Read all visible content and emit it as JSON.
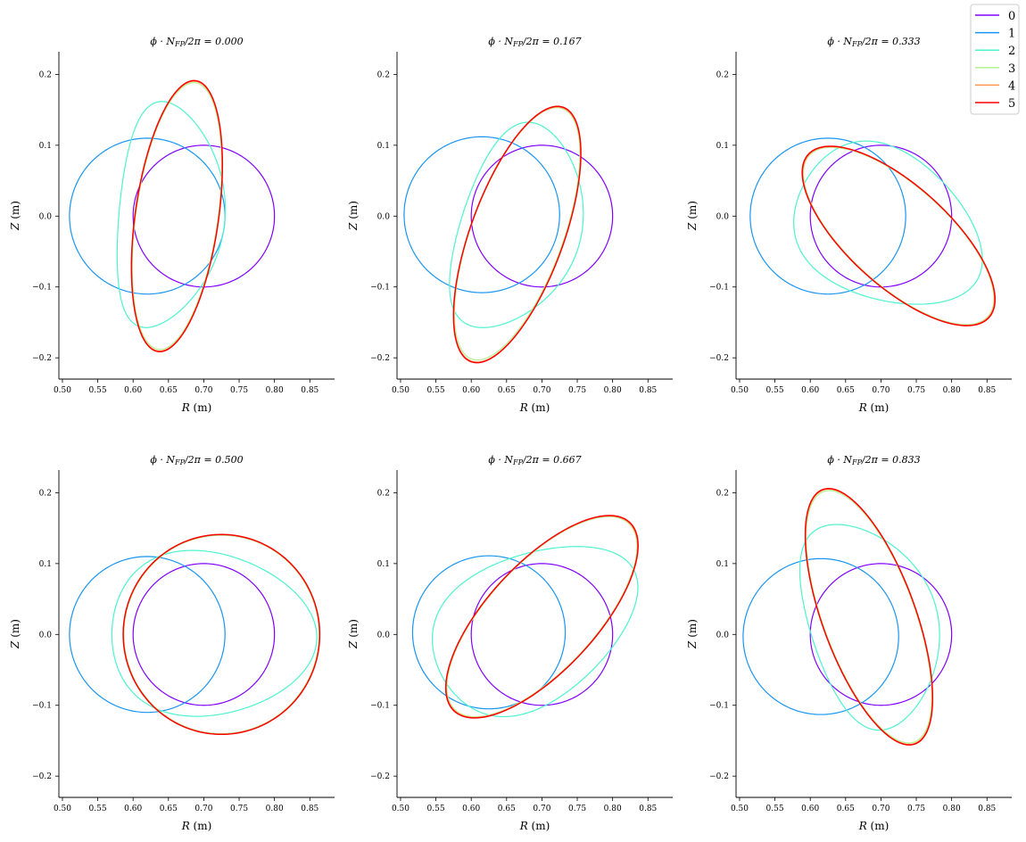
{
  "chart_data": {
    "type": "line",
    "title_prefix": "ϕ · N",
    "title_sub": "FP",
    "title_suffix": "/2π = ",
    "xlabel_var": "R",
    "xlabel_unit": " (m)",
    "ylabel_var": "Z",
    "ylabel_unit": " (m)",
    "xlim": [
      0.495,
      0.885
    ],
    "ylim": [
      -0.23,
      0.232
    ],
    "xticks": [
      0.5,
      0.55,
      0.6,
      0.65,
      0.7,
      0.75,
      0.8,
      0.85
    ],
    "xtick_labels": [
      "0.50",
      "0.55",
      "0.60",
      "0.65",
      "0.70",
      "0.75",
      "0.80",
      "0.85"
    ],
    "yticks": [
      -0.2,
      -0.1,
      0.0,
      0.1,
      0.2
    ],
    "ytick_labels": [
      "−0.2",
      "−0.1",
      "0.0",
      "0.1",
      "0.2"
    ],
    "legend_position": "top-right",
    "series": [
      {
        "name": "0",
        "color": "#8000ff"
      },
      {
        "name": "1",
        "color": "#1996f3"
      },
      {
        "name": "2",
        "color": "#4df3ce"
      },
      {
        "name": "3",
        "color": "#b2f396"
      },
      {
        "name": "4",
        "color": "#ff964f"
      },
      {
        "name": "5",
        "color": "#ff0000"
      }
    ],
    "panels": [
      {
        "phase": "0.000",
        "curves": [
          {
            "series": "0",
            "center": [
              0.7,
              0.0
            ],
            "semi_axes": [
              0.1,
              0.1
            ],
            "angle_deg": 0
          },
          {
            "series": "1",
            "center": [
              0.62,
              0.0
            ],
            "semi_axes": [
              0.11,
              0.11
            ],
            "angle_deg": 0
          },
          {
            "series": "2",
            "center": [
              0.655,
              0.0
            ],
            "semi_axes": [
              0.075,
              0.16
            ],
            "angle_deg": -5,
            "triangularity": 0.35
          },
          {
            "series": "3",
            "center": [
              0.662,
              0.0
            ],
            "semi_axes": [
              0.058,
              0.19
            ],
            "angle_deg": -8
          },
          {
            "series": "4",
            "center": [
              0.662,
              0.0
            ],
            "semi_axes": [
              0.059,
              0.192
            ],
            "angle_deg": -8
          },
          {
            "series": "5",
            "center": [
              0.662,
              0.0
            ],
            "semi_axes": [
              0.059,
              0.193
            ],
            "angle_deg": -8
          }
        ]
      },
      {
        "phase": "0.167",
        "curves": [
          {
            "series": "0",
            "center": [
              0.7,
              0.0
            ],
            "semi_axes": [
              0.1,
              0.1
            ],
            "angle_deg": 0
          },
          {
            "series": "1",
            "center": [
              0.615,
              0.002
            ],
            "semi_axes": [
              0.11,
              0.11
            ],
            "angle_deg": 0
          },
          {
            "series": "2",
            "center": [
              0.67,
              -0.02
            ],
            "semi_axes": [
              0.085,
              0.15
            ],
            "angle_deg": -18,
            "triangularity": 0.3
          },
          {
            "series": "3",
            "center": [
              0.665,
              -0.025
            ],
            "semi_axes": [
              0.065,
              0.188
            ],
            "angle_deg": -20
          },
          {
            "series": "4",
            "center": [
              0.665,
              -0.026
            ],
            "semi_axes": [
              0.066,
              0.19
            ],
            "angle_deg": -20
          },
          {
            "series": "5",
            "center": [
              0.665,
              -0.026
            ],
            "semi_axes": [
              0.066,
              0.191
            ],
            "angle_deg": -20
          }
        ]
      },
      {
        "phase": "0.333",
        "curves": [
          {
            "series": "0",
            "center": [
              0.7,
              0.0
            ],
            "semi_axes": [
              0.1,
              0.1
            ],
            "angle_deg": 0
          },
          {
            "series": "1",
            "center": [
              0.625,
              0.0
            ],
            "semi_axes": [
              0.11,
              0.11
            ],
            "angle_deg": 0
          },
          {
            "series": "2",
            "center": [
              0.715,
              -0.02
            ],
            "semi_axes": [
              0.14,
              0.105
            ],
            "angle_deg": -30,
            "triangularity": 0.25
          },
          {
            "series": "3",
            "center": [
              0.725,
              -0.028
            ],
            "semi_axes": [
              0.17,
              0.07
            ],
            "angle_deg": -42
          },
          {
            "series": "4",
            "center": [
              0.725,
              -0.028
            ],
            "semi_axes": [
              0.171,
              0.071
            ],
            "angle_deg": -42
          },
          {
            "series": "5",
            "center": [
              0.725,
              -0.028
            ],
            "semi_axes": [
              0.172,
              0.071
            ],
            "angle_deg": -42
          }
        ]
      },
      {
        "phase": "0.500",
        "curves": [
          {
            "series": "0",
            "center": [
              0.7,
              0.0
            ],
            "semi_axes": [
              0.1,
              0.1
            ],
            "angle_deg": 0
          },
          {
            "series": "1",
            "center": [
              0.62,
              0.0
            ],
            "semi_axes": [
              0.11,
              0.11
            ],
            "angle_deg": 0
          },
          {
            "series": "2",
            "center": [
              0.715,
              0.0
            ],
            "semi_axes": [
              0.145,
              0.117
            ],
            "angle_deg": -3,
            "triangularity": 0.2
          },
          {
            "series": "3",
            "center": [
              0.725,
              0.0
            ],
            "semi_axes": [
              0.138,
              0.14
            ],
            "angle_deg": 0
          },
          {
            "series": "4",
            "center": [
              0.725,
              0.0
            ],
            "semi_axes": [
              0.139,
              0.141
            ],
            "angle_deg": 0
          },
          {
            "series": "5",
            "center": [
              0.725,
              0.0
            ],
            "semi_axes": [
              0.139,
              0.141
            ],
            "angle_deg": 0
          }
        ]
      },
      {
        "phase": "0.667",
        "curves": [
          {
            "series": "0",
            "center": [
              0.7,
              0.0
            ],
            "semi_axes": [
              0.1,
              0.1
            ],
            "angle_deg": 0
          },
          {
            "series": "1",
            "center": [
              0.625,
              0.003
            ],
            "semi_axes": [
              0.108,
              0.108
            ],
            "angle_deg": 0
          },
          {
            "series": "2",
            "center": [
              0.695,
              0.015
            ],
            "semi_axes": [
              0.155,
              0.105
            ],
            "angle_deg": 30,
            "triangularity": 0.25
          },
          {
            "series": "3",
            "center": [
              0.7,
              0.025
            ],
            "semi_axes": [
              0.18,
              0.075
            ],
            "angle_deg": 47
          },
          {
            "series": "4",
            "center": [
              0.7,
              0.025
            ],
            "semi_axes": [
              0.181,
              0.076
            ],
            "angle_deg": 47
          },
          {
            "series": "5",
            "center": [
              0.7,
              0.025
            ],
            "semi_axes": [
              0.182,
              0.076
            ],
            "angle_deg": 47
          }
        ]
      },
      {
        "phase": "0.833",
        "curves": [
          {
            "series": "0",
            "center": [
              0.7,
              0.0
            ],
            "semi_axes": [
              0.1,
              0.1
            ],
            "angle_deg": 0
          },
          {
            "series": "1",
            "center": [
              0.615,
              -0.003
            ],
            "semi_axes": [
              0.11,
              0.11
            ],
            "angle_deg": 0
          },
          {
            "series": "2",
            "center": [
              0.69,
              0.018
            ],
            "semi_axes": [
              0.09,
              0.15
            ],
            "angle_deg": 18,
            "triangularity": 0.3
          },
          {
            "series": "3",
            "center": [
              0.683,
              0.025
            ],
            "semi_axes": [
              0.065,
              0.188
            ],
            "angle_deg": 20
          },
          {
            "series": "4",
            "center": [
              0.683,
              0.025
            ],
            "semi_axes": [
              0.066,
              0.19
            ],
            "angle_deg": 20
          },
          {
            "series": "5",
            "center": [
              0.683,
              0.025
            ],
            "semi_axes": [
              0.066,
              0.191
            ],
            "angle_deg": 20
          }
        ]
      }
    ]
  }
}
